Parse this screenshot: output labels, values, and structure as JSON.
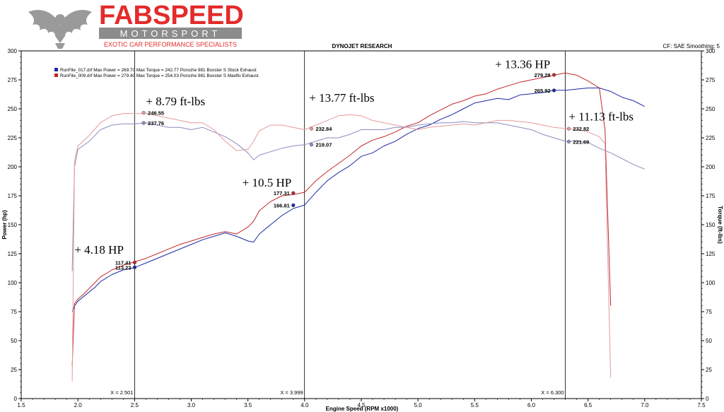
{
  "logo": {
    "name": "FABSPEED",
    "sub": "MOTORSPORT",
    "tagline": "EXOTIC CAR PERFORMANCE SPECIALISTS",
    "brand_color": "#e32b2b",
    "gray": "#8c8c8c"
  },
  "header": {
    "title": "DYNOJET RESEARCH",
    "cf_info": "CF: SAE  Smoothing: 5"
  },
  "legend": [
    {
      "text": "RunFile_017.drf Max Power = 269.70   Max Torque = 242.77   Porsche 981 Boxster S Stock Exhaust",
      "color": "#1b2aa6"
    },
    {
      "text": "RunFile_009.drf Max Power = 279.40   Max Torque = 254.03   Porsche 981 Boxster S Maxflo Exhaust",
      "color": "#c0282a"
    }
  ],
  "chart_data": {
    "type": "line",
    "title": "DYNOJET RESEARCH",
    "xlabel": "Engine Speed (RPM x1000)",
    "ylabel": "Power (hp)",
    "y2label": "Torque (ft-lbs)",
    "xlim": [
      1.5,
      7.5
    ],
    "ylim": [
      0,
      300
    ],
    "y2lim": [
      0,
      300
    ],
    "x_ticks": [
      "1.5",
      "2.0",
      "2.5",
      "3.0",
      "3.5",
      "4.0",
      "4.5",
      "5.0",
      "5.5",
      "6.0",
      "6.5",
      "7.0",
      "7.5"
    ],
    "y_ticks": [
      "0",
      "25",
      "50",
      "75",
      "100",
      "125",
      "150",
      "175",
      "200",
      "225",
      "250",
      "275",
      "300"
    ],
    "grid": false,
    "cursors": [
      {
        "x": 2.501,
        "label": "X = 2.501"
      },
      {
        "x": 3.999,
        "label": "X = 3.999"
      },
      {
        "x": 6.3,
        "label": "X = 6.300"
      }
    ],
    "series": [
      {
        "name": "RunFile_017.drf Power",
        "color": "#1b2aa6",
        "axis": "left",
        "x": [
          1.95,
          1.97,
          2.0,
          2.05,
          2.1,
          2.15,
          2.2,
          2.3,
          2.4,
          2.5,
          2.6,
          2.7,
          2.8,
          2.9,
          3.0,
          3.1,
          3.2,
          3.3,
          3.4,
          3.5,
          3.55,
          3.6,
          3.7,
          3.8,
          3.9,
          4.0,
          4.1,
          4.2,
          4.3,
          4.4,
          4.5,
          4.6,
          4.7,
          4.8,
          4.9,
          5.0,
          5.1,
          5.2,
          5.3,
          5.4,
          5.5,
          5.6,
          5.7,
          5.8,
          5.9,
          6.0,
          6.1,
          6.2,
          6.3,
          6.4,
          6.5,
          6.6,
          6.7,
          6.8,
          6.9,
          7.0
        ],
        "y": [
          75,
          80,
          84,
          88,
          92,
          96,
          101,
          107,
          111,
          113,
          117,
          121,
          125,
          129,
          133,
          137,
          140,
          143,
          140,
          136,
          135,
          142,
          150,
          158,
          164,
          167,
          178,
          188,
          195,
          201,
          209,
          212,
          218,
          222,
          228,
          233,
          236,
          241,
          245,
          250,
          255,
          257,
          259,
          258,
          262,
          263,
          264,
          266,
          266,
          267,
          268,
          268,
          265,
          260,
          257,
          252
        ]
      },
      {
        "name": "RunFile_009.drf Power",
        "color": "#c0282a",
        "axis": "left",
        "x": [
          1.95,
          1.97,
          2.0,
          2.05,
          2.1,
          2.15,
          2.2,
          2.3,
          2.4,
          2.5,
          2.6,
          2.7,
          2.8,
          2.9,
          3.0,
          3.1,
          3.2,
          3.3,
          3.4,
          3.5,
          3.55,
          3.6,
          3.7,
          3.8,
          3.9,
          4.0,
          4.1,
          4.2,
          4.3,
          4.4,
          4.5,
          4.6,
          4.7,
          4.8,
          4.9,
          5.0,
          5.1,
          5.2,
          5.3,
          5.4,
          5.5,
          5.6,
          5.7,
          5.8,
          5.9,
          6.0,
          6.1,
          6.2,
          6.3,
          6.4,
          6.5,
          6.6,
          6.65,
          6.7
        ],
        "y": [
          28,
          82,
          86,
          90,
          95,
          100,
          105,
          111,
          115,
          118,
          121,
          125,
          129,
          133,
          136,
          139,
          142,
          144,
          142,
          148,
          153,
          162,
          170,
          175,
          176,
          178,
          188,
          196,
          203,
          210,
          218,
          223,
          226,
          230,
          235,
          238,
          244,
          249,
          254,
          257,
          261,
          263,
          267,
          270,
          273,
          275,
          277,
          279,
          281,
          279,
          274,
          268,
          232,
          80
        ]
      },
      {
        "name": "RunFile_017.drf Torque",
        "color": "#8a8ebd",
        "axis": "right",
        "x": [
          1.95,
          1.97,
          2.0,
          2.1,
          2.2,
          2.3,
          2.4,
          2.5,
          2.6,
          2.7,
          2.8,
          2.9,
          3.0,
          3.1,
          3.2,
          3.3,
          3.4,
          3.5,
          3.55,
          3.6,
          3.7,
          3.8,
          3.9,
          4.0,
          4.1,
          4.2,
          4.3,
          4.4,
          4.5,
          4.6,
          4.7,
          4.8,
          4.9,
          5.0,
          5.1,
          5.2,
          5.3,
          5.4,
          5.5,
          5.6,
          5.7,
          5.8,
          5.9,
          6.0,
          6.1,
          6.2,
          6.3,
          6.4,
          6.5,
          6.6,
          6.7,
          6.8,
          6.9,
          7.0
        ],
        "y": [
          110,
          200,
          215,
          222,
          232,
          236,
          237,
          237,
          238,
          236,
          234,
          234,
          232,
          234,
          230,
          226,
          220,
          212,
          206,
          210,
          213,
          216,
          218,
          219,
          222,
          225,
          225,
          228,
          232,
          232,
          232,
          234,
          234,
          236,
          237,
          238,
          238,
          239,
          238,
          238,
          238,
          236,
          234,
          232,
          228,
          225,
          222,
          222,
          221,
          216,
          212,
          207,
          202,
          198
        ]
      },
      {
        "name": "RunFile_009.drf Torque",
        "color": "#e59a9a",
        "axis": "right",
        "x": [
          1.95,
          1.97,
          2.0,
          2.1,
          2.2,
          2.3,
          2.4,
          2.5,
          2.6,
          2.7,
          2.8,
          2.9,
          3.0,
          3.1,
          3.2,
          3.3,
          3.4,
          3.5,
          3.55,
          3.6,
          3.7,
          3.8,
          3.9,
          4.0,
          4.1,
          4.2,
          4.3,
          4.4,
          4.5,
          4.6,
          4.7,
          4.8,
          4.9,
          5.0,
          5.1,
          5.2,
          5.3,
          5.4,
          5.5,
          5.6,
          5.7,
          5.8,
          5.9,
          6.0,
          6.1,
          6.2,
          6.3,
          6.4,
          6.5,
          6.6,
          6.65,
          6.7
        ],
        "y": [
          15,
          205,
          218,
          227,
          238,
          244,
          246,
          246,
          246,
          244,
          242,
          240,
          238,
          238,
          232,
          222,
          214,
          215,
          222,
          231,
          236,
          236,
          234,
          232,
          236,
          240,
          244,
          245,
          244,
          240,
          238,
          236,
          234,
          232,
          234,
          235,
          236,
          237,
          236,
          238,
          240,
          240,
          239,
          238,
          236,
          234,
          233,
          232,
          230,
          226,
          220,
          18
        ]
      }
    ],
    "markers": [
      {
        "x": 2.501,
        "y": 117.41,
        "label": "117.41",
        "color": "#c0282a"
      },
      {
        "x": 2.501,
        "y": 113.23,
        "label": "113.23",
        "color": "#1b2aa6"
      },
      {
        "x": 2.58,
        "y": 246.55,
        "label": "246.55",
        "color": "#e59a9a"
      },
      {
        "x": 2.58,
        "y": 237.76,
        "label": "237.76",
        "color": "#8a8ebd"
      },
      {
        "x": 3.9,
        "y": 177.31,
        "label": "177.31",
        "color": "#c0282a"
      },
      {
        "x": 3.9,
        "y": 166.81,
        "label": "166.81",
        "color": "#1b2aa6"
      },
      {
        "x": 4.06,
        "y": 232.84,
        "label": "232.84",
        "color": "#e59a9a"
      },
      {
        "x": 4.06,
        "y": 219.07,
        "label": "219.07",
        "color": "#8a8ebd"
      },
      {
        "x": 6.2,
        "y": 279.28,
        "label": "279.28",
        "color": "#c0282a"
      },
      {
        "x": 6.2,
        "y": 265.92,
        "label": "265.92",
        "color": "#1b2aa6"
      },
      {
        "x": 6.33,
        "y": 232.82,
        "label": "232.82",
        "color": "#e59a9a"
      },
      {
        "x": 6.33,
        "y": 221.69,
        "label": "221.69",
        "color": "#8a8ebd"
      }
    ],
    "annotations": [
      {
        "text": "+ 4.18 HP",
        "x": 1.97,
        "y": 125
      },
      {
        "text": "+ 8.79 ft-lbs",
        "x": 2.6,
        "y": 253
      },
      {
        "text": "+ 10.5 HP",
        "x": 3.45,
        "y": 183
      },
      {
        "text": "+ 13.77 ft-lbs",
        "x": 4.04,
        "y": 256
      },
      {
        "text": "+ 13.36 HP",
        "x": 5.68,
        "y": 285
      },
      {
        "text": "+ 11.13 ft-lbs",
        "x": 6.33,
        "y": 240
      }
    ]
  }
}
